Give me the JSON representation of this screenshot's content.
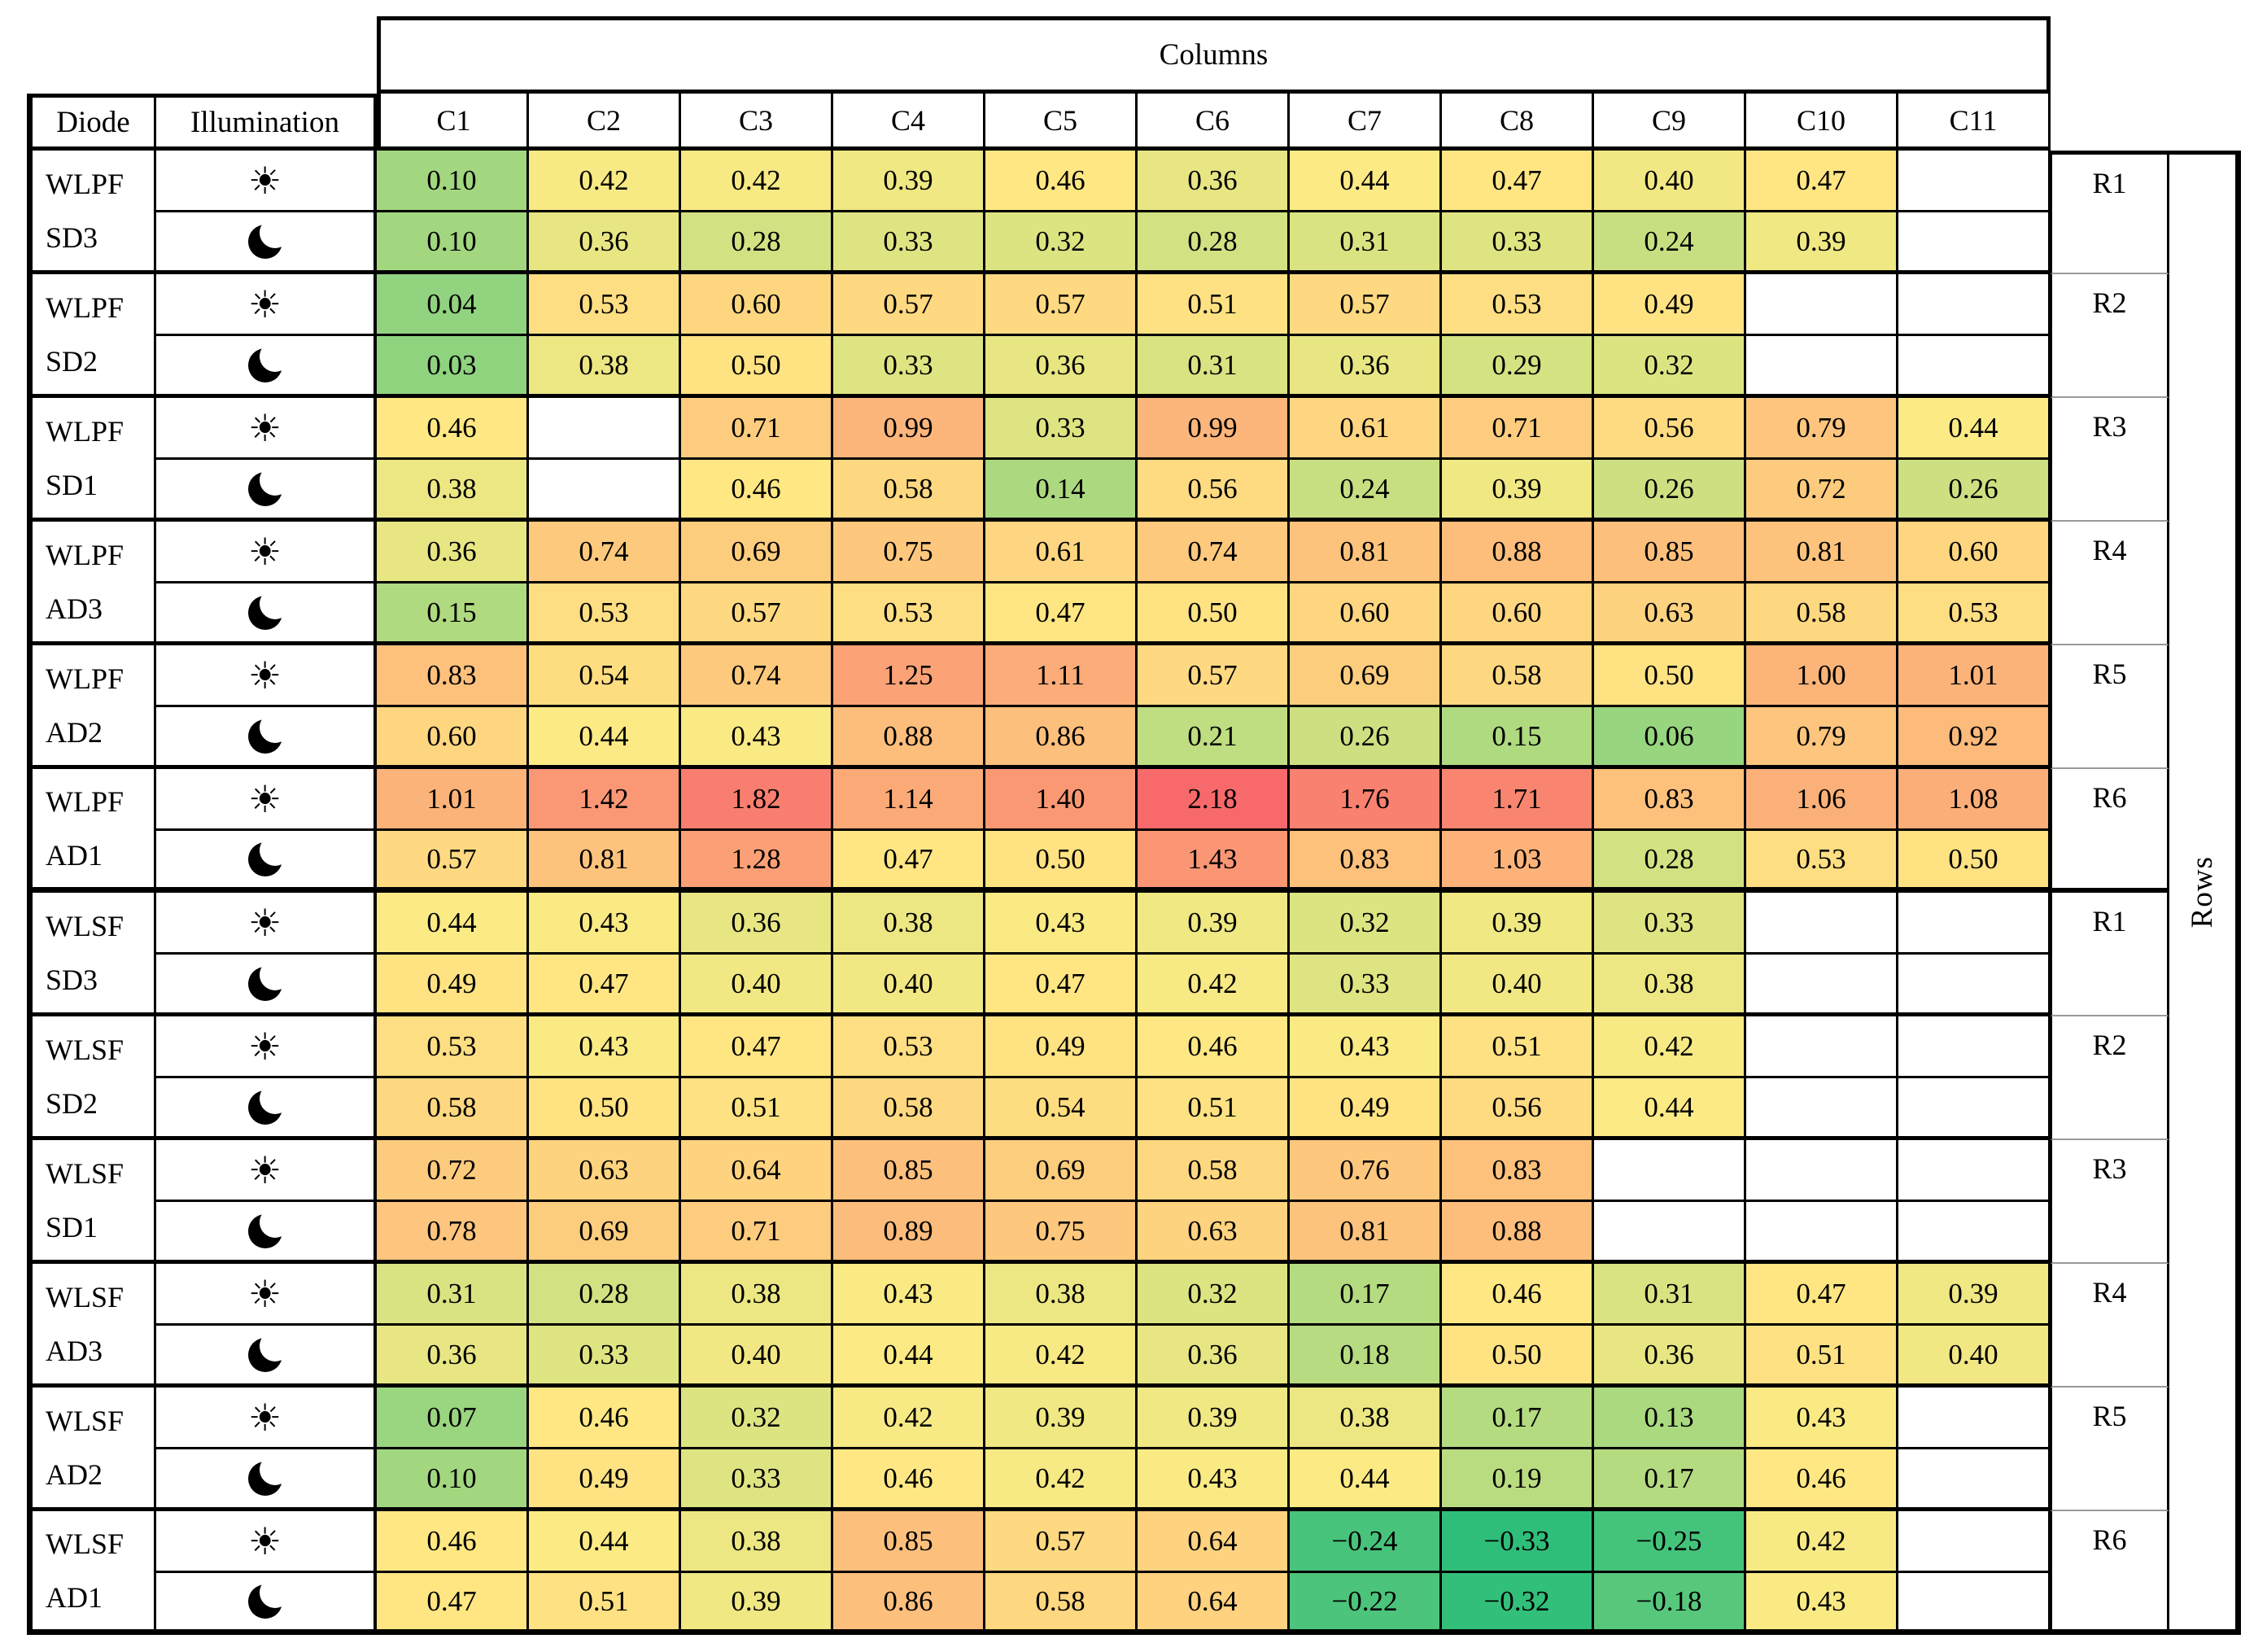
{
  "table": {
    "columns_header": "Columns",
    "rows_header": "Rows",
    "diode_header": "Diode",
    "illumination_header": "Illumination",
    "illumination_icons": {
      "day": "sun-icon",
      "night": "moon-icon"
    },
    "sun_glyph": "☀"
  },
  "colors": {
    "background": "#FFFFFF",
    "border": "#000000",
    "row_label_divider": "#999999",
    "scale_min": "#2FBE7A",
    "scale_mid": "#FFEB84",
    "scale_max": "#F8696B"
  },
  "chart_data": {
    "type": "heatmap",
    "x_axis_label": "Columns",
    "y_axis_label": "Rows",
    "columns": [
      "C1",
      "C2",
      "C3",
      "C4",
      "C5",
      "C6",
      "C7",
      "C8",
      "C9",
      "C10",
      "C11"
    ],
    "value_format": "0.00",
    "grid": true,
    "legend": "none",
    "color_scale": {
      "min_value": -0.33,
      "mid_value": 0.45,
      "max_value": 2.18,
      "min_color": "#2FBE7A",
      "mid_color": "#FFEB84",
      "max_color": "#F8696B"
    },
    "row_groups": [
      {
        "diode": [
          "WLPF",
          "SD3"
        ],
        "r_label": "R1",
        "sun": [
          0.1,
          0.42,
          0.42,
          0.39,
          0.46,
          0.36,
          0.44,
          0.47,
          0.4,
          0.47,
          null
        ],
        "moon": [
          0.1,
          0.36,
          0.28,
          0.33,
          0.32,
          0.28,
          0.31,
          0.33,
          0.24,
          0.39,
          null
        ]
      },
      {
        "diode": [
          "WLPF",
          "SD2"
        ],
        "r_label": "R2",
        "sun": [
          0.04,
          0.53,
          0.6,
          0.57,
          0.57,
          0.51,
          0.57,
          0.53,
          0.49,
          null,
          null
        ],
        "moon": [
          0.03,
          0.38,
          0.5,
          0.33,
          0.36,
          0.31,
          0.36,
          0.29,
          0.32,
          null,
          null
        ]
      },
      {
        "diode": [
          "WLPF",
          "SD1"
        ],
        "r_label": "R3",
        "sun": [
          0.46,
          null,
          0.71,
          0.99,
          0.33,
          0.99,
          0.61,
          0.71,
          0.56,
          0.79,
          0.44
        ],
        "moon": [
          0.38,
          null,
          0.46,
          0.58,
          0.14,
          0.56,
          0.24,
          0.39,
          0.26,
          0.72,
          0.26
        ]
      },
      {
        "diode": [
          "WLPF",
          "AD3"
        ],
        "r_label": "R4",
        "sun": [
          0.36,
          0.74,
          0.69,
          0.75,
          0.61,
          0.74,
          0.81,
          0.88,
          0.85,
          0.81,
          0.6
        ],
        "moon": [
          0.15,
          0.53,
          0.57,
          0.53,
          0.47,
          0.5,
          0.6,
          0.6,
          0.63,
          0.58,
          0.53
        ]
      },
      {
        "diode": [
          "WLPF",
          "AD2"
        ],
        "r_label": "R5",
        "sun": [
          0.83,
          0.54,
          0.74,
          1.25,
          1.11,
          0.57,
          0.69,
          0.58,
          0.5,
          1.0,
          1.01
        ],
        "moon": [
          0.6,
          0.44,
          0.43,
          0.88,
          0.86,
          0.21,
          0.26,
          0.15,
          0.06,
          0.79,
          0.92
        ]
      },
      {
        "diode": [
          "WLPF",
          "AD1"
        ],
        "r_label": "R6",
        "sun": [
          1.01,
          1.42,
          1.82,
          1.14,
          1.4,
          2.18,
          1.76,
          1.71,
          0.83,
          1.06,
          1.08
        ],
        "moon": [
          0.57,
          0.81,
          1.28,
          0.47,
          0.5,
          1.43,
          0.83,
          1.03,
          0.28,
          0.53,
          0.5
        ]
      },
      {
        "diode": [
          "WLSF",
          "SD3"
        ],
        "r_label": "R1",
        "sun": [
          0.44,
          0.43,
          0.36,
          0.38,
          0.43,
          0.39,
          0.32,
          0.39,
          0.33,
          null,
          null
        ],
        "moon": [
          0.49,
          0.47,
          0.4,
          0.4,
          0.47,
          0.42,
          0.33,
          0.4,
          0.38,
          null,
          null
        ]
      },
      {
        "diode": [
          "WLSF",
          "SD2"
        ],
        "r_label": "R2",
        "sun": [
          0.53,
          0.43,
          0.47,
          0.53,
          0.49,
          0.46,
          0.43,
          0.51,
          0.42,
          null,
          null
        ],
        "moon": [
          0.58,
          0.5,
          0.51,
          0.58,
          0.54,
          0.51,
          0.49,
          0.56,
          0.44,
          null,
          null
        ]
      },
      {
        "diode": [
          "WLSF",
          "SD1"
        ],
        "r_label": "R3",
        "sun": [
          0.72,
          0.63,
          0.64,
          0.85,
          0.69,
          0.58,
          0.76,
          0.83,
          null,
          null,
          null
        ],
        "moon": [
          0.78,
          0.69,
          0.71,
          0.89,
          0.75,
          0.63,
          0.81,
          0.88,
          null,
          null,
          null
        ]
      },
      {
        "diode": [
          "WLSF",
          "AD3"
        ],
        "r_label": "R4",
        "sun": [
          0.31,
          0.28,
          0.38,
          0.43,
          0.38,
          0.32,
          0.17,
          0.46,
          0.31,
          0.47,
          0.39
        ],
        "moon": [
          0.36,
          0.33,
          0.4,
          0.44,
          0.42,
          0.36,
          0.18,
          0.5,
          0.36,
          0.51,
          0.4
        ]
      },
      {
        "diode": [
          "WLSF",
          "AD2"
        ],
        "r_label": "R5",
        "sun": [
          0.07,
          0.46,
          0.32,
          0.42,
          0.39,
          0.39,
          0.38,
          0.17,
          0.13,
          0.43,
          null
        ],
        "moon": [
          0.1,
          0.49,
          0.33,
          0.46,
          0.42,
          0.43,
          0.44,
          0.19,
          0.17,
          0.46,
          null
        ]
      },
      {
        "diode": [
          "WLSF",
          "AD1"
        ],
        "r_label": "R6",
        "sun": [
          0.46,
          0.44,
          0.38,
          0.85,
          0.57,
          0.64,
          -0.24,
          -0.33,
          -0.25,
          0.42,
          null
        ],
        "moon": [
          0.47,
          0.51,
          0.39,
          0.86,
          0.58,
          0.64,
          -0.22,
          -0.32,
          -0.18,
          0.43,
          null
        ]
      }
    ]
  }
}
